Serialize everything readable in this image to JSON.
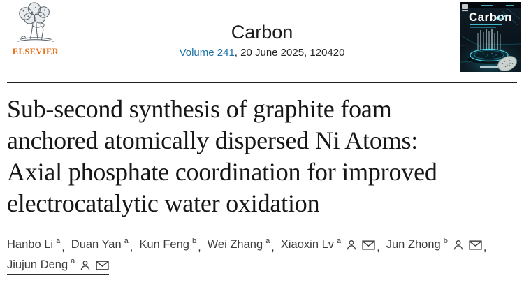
{
  "banner": {
    "publisher": "ELSEVIER",
    "journal": "Carbon",
    "volume_link": "Volume 241",
    "issue_suffix": ", 20 June 2025, 120420",
    "cover_title": "Carbon"
  },
  "article": {
    "title": "Sub-second synthesis of graphite foam anchored atomically dispersed Ni Atoms: Axial phosphate coordination for improved electrocatalytic water oxidation",
    "title_lines": [
      "Sub-second synthesis of graphite foam",
      "anchored atomically dispersed Ni Atoms:",
      "Axial phosphate coordination for improved",
      "electrocatalytic water oxidation"
    ]
  },
  "authors": {
    "separator": ",",
    "list": [
      {
        "name": "Hanbo Li",
        "sup": "a",
        "corresponding": false
      },
      {
        "name": "Duan Yan",
        "sup": "a",
        "corresponding": false
      },
      {
        "name": "Kun Feng",
        "sup": "b",
        "corresponding": false
      },
      {
        "name": "Wei Zhang",
        "sup": "a",
        "corresponding": false
      },
      {
        "name": "Xiaoxin Lv",
        "sup": "a",
        "corresponding": true
      },
      {
        "name": "Jun Zhong",
        "sup": "b",
        "corresponding": true
      },
      {
        "name": "Jiujun Deng",
        "sup": "a",
        "corresponding": true
      }
    ]
  },
  "colors": {
    "elsevier_orange": "#e9711c",
    "link_blue": "#1d72a8",
    "title_black": "#161616",
    "author_gray": "#3b3b3b",
    "rule_black": "#1f1f1f",
    "cover_teal": "#49d6e6"
  }
}
